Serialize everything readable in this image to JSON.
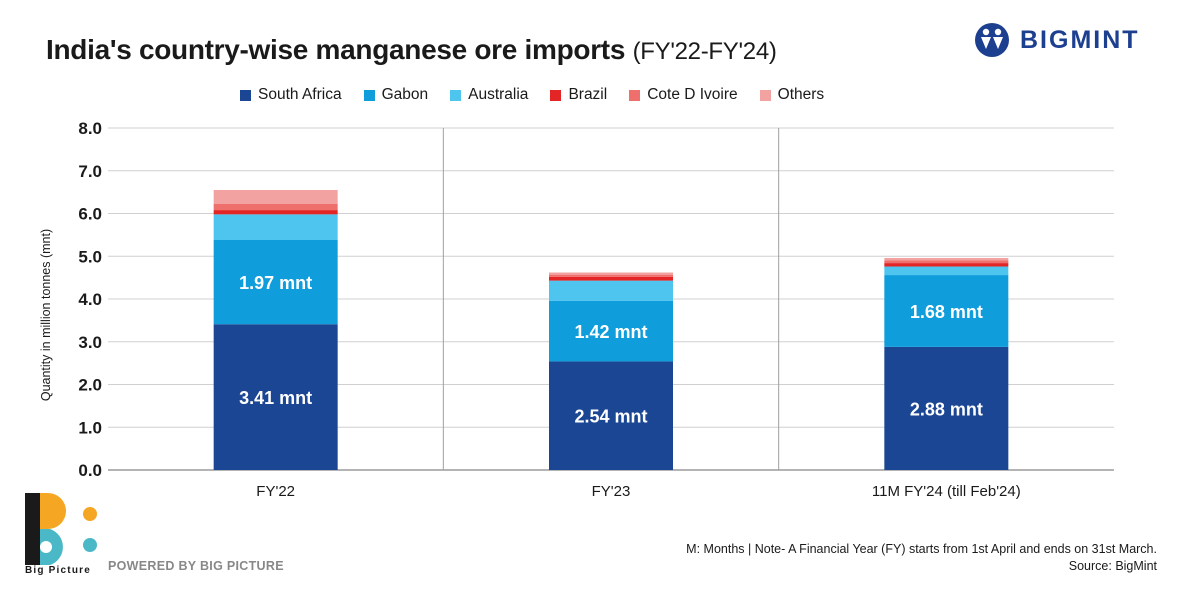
{
  "header": {
    "title": "India's country-wise manganese ore imports",
    "subtitle": "(FY'22-FY'24)",
    "brand": "BIGMINT"
  },
  "legend_items": [
    {
      "label": "South Africa",
      "color": "#1b4693"
    },
    {
      "label": "Gabon",
      "color": "#0f9ddb"
    },
    {
      "label": "Australia",
      "color": "#4ec5ef"
    },
    {
      "label": "Brazil",
      "color": "#e32526"
    },
    {
      "label": "Cote D Ivoire",
      "color": "#ee6f6c"
    },
    {
      "label": "Others",
      "color": "#f2a3a1"
    }
  ],
  "chart_data": {
    "type": "bar",
    "stacked": true,
    "categories": [
      "FY'22",
      "FY'23",
      "11M FY'24 (till Feb'24)"
    ],
    "series": [
      {
        "name": "South Africa",
        "color": "#1b4693",
        "values": [
          3.41,
          2.54,
          2.88
        ],
        "labels": [
          "3.41 mnt",
          "2.54 mnt",
          "2.88 mnt"
        ]
      },
      {
        "name": "Gabon",
        "color": "#0f9ddb",
        "values": [
          1.97,
          1.42,
          1.68
        ],
        "labels": [
          "1.97 mnt",
          "1.42 mnt",
          "1.68 mnt"
        ]
      },
      {
        "name": "Australia",
        "color": "#4ec5ef",
        "values": [
          0.6,
          0.47,
          0.2
        ]
      },
      {
        "name": "Brazil",
        "color": "#e32526",
        "values": [
          0.1,
          0.09,
          0.08
        ]
      },
      {
        "name": "Cote D Ivoire",
        "color": "#ee6f6c",
        "values": [
          0.15,
          0.05,
          0.06
        ]
      },
      {
        "name": "Others",
        "color": "#f2a3a1",
        "values": [
          0.32,
          0.05,
          0.06
        ]
      }
    ],
    "ylabel": "Quantity in million tonnes (mnt)",
    "ylim": [
      0,
      8
    ],
    "yticks": [
      "0.0",
      "1.0",
      "2.0",
      "3.0",
      "4.0",
      "5.0",
      "6.0",
      "7.0",
      "8.0"
    ],
    "grid": true,
    "legend_position": "top"
  },
  "footer": {
    "note": "M: Months | Note- A Financial Year (FY) starts from 1st April and ends on 31st March.",
    "source": "Source: BigMint",
    "powered_by": "POWERED BY BIG PICTURE",
    "logo_caption": "Big Picture"
  }
}
